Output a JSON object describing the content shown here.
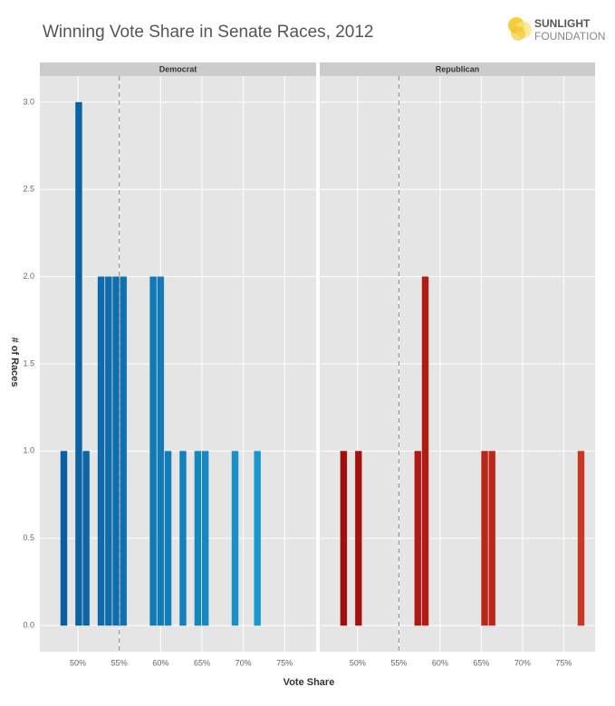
{
  "chart_data": {
    "type": "histogram",
    "title": "Winning Vote Share in Senate Races, 2012",
    "x_label": "Vote Share",
    "y_label": "# of Races",
    "bins": [
      47.85,
      48.75,
      49.65,
      50.55,
      51.45,
      52.35,
      53.25,
      54.15,
      55.05,
      55.95,
      56.85,
      57.75,
      58.65,
      59.55,
      60.45,
      61.35,
      62.25,
      63.15,
      64.05,
      64.95,
      65.85,
      66.75,
      67.65,
      68.55,
      69.45,
      70.35,
      71.25,
      72.15,
      73.05,
      73.95,
      74.85,
      75.75,
      76.65,
      77.55
    ],
    "facets": [
      {
        "name": "Democrat",
        "colors": [
          "#08589e",
          "#1fa8d8"
        ],
        "values": [
          1,
          0,
          3,
          1,
          0,
          2,
          2,
          2,
          2,
          0,
          0,
          0,
          2,
          2,
          1,
          0,
          1,
          0,
          1,
          1,
          0,
          0,
          0,
          1,
          0,
          0,
          1,
          0,
          0,
          0,
          0,
          0,
          0
        ]
      },
      {
        "name": "Republican",
        "colors": [
          "#9e0a0a",
          "#cc3a24"
        ],
        "values": [
          1,
          0,
          1,
          0,
          0,
          0,
          0,
          0,
          0,
          0,
          1,
          2,
          0,
          0,
          0,
          0,
          0,
          0,
          0,
          1,
          1,
          0,
          0,
          0,
          0,
          0,
          0,
          0,
          0,
          0,
          0,
          0,
          1
        ]
      }
    ],
    "reference_line": 55,
    "xlim": [
      45.4,
      78.8
    ],
    "xticks": [
      {
        "value": 50,
        "label": "50%"
      },
      {
        "value": 55,
        "label": "55%"
      },
      {
        "value": 60,
        "label": "60%"
      },
      {
        "value": 65,
        "label": "65%"
      },
      {
        "value": 70,
        "label": "70%"
      },
      {
        "value": 75,
        "label": "75%"
      }
    ],
    "ylim": [
      -0.15,
      3.15
    ],
    "yticks": [
      {
        "value": 0,
        "label": "0.0"
      },
      0.5,
      {
        "value": 1,
        "label": "1.0"
      },
      1.5,
      {
        "value": 2,
        "label": "2.0"
      },
      2.5,
      {
        "value": 3,
        "label": "3.0"
      }
    ],
    "grid": true
  },
  "logo": {
    "line1": "SUNLIGHT",
    "line2": "FOUNDATION"
  }
}
